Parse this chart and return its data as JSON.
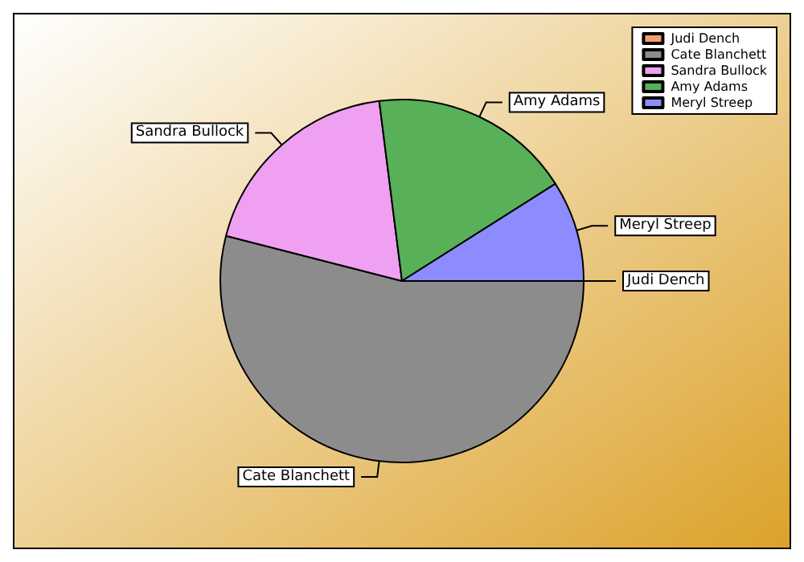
{
  "chart_data": {
    "type": "pie",
    "categories": [
      "Judi Dench",
      "Cate Blanchett",
      "Sandra Bullock",
      "Amy Adams",
      "Meryl Streep"
    ],
    "values": [
      0,
      54,
      19,
      18,
      9
    ],
    "colors": [
      "#f0a070",
      "#8c8c8c",
      "#f0a0f0",
      "#58b058",
      "#8c8cff"
    ],
    "legend": "top right"
  }
}
